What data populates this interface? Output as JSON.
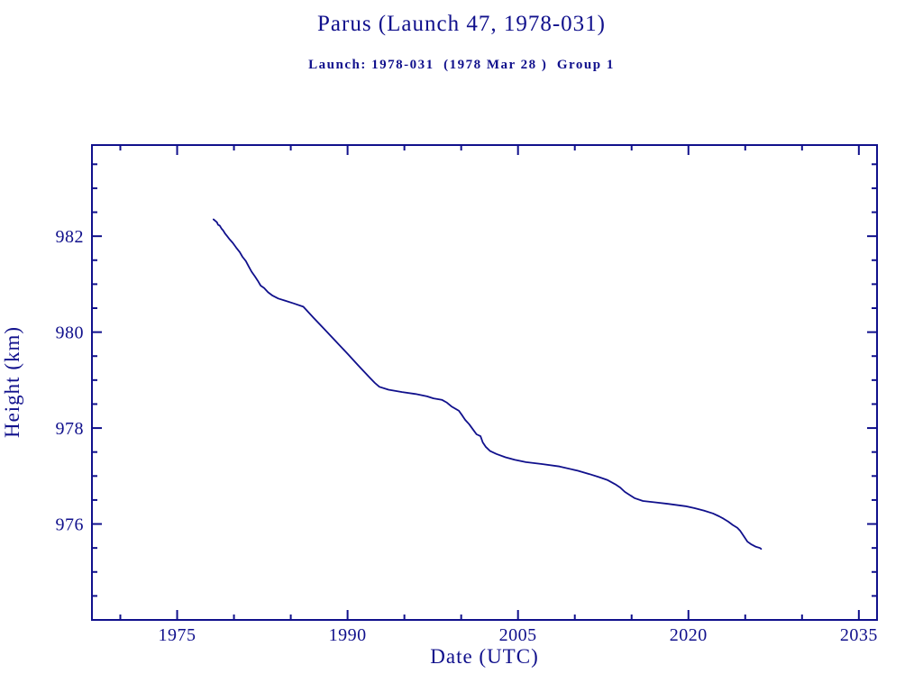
{
  "window": {
    "background_color": "#ffffff",
    "accent_color": "#10108c"
  },
  "chart_data": {
    "type": "line",
    "title": "Parus (Launch 47, 1978-031)",
    "subtitle": "Launch: 1978-031  (1978 Mar 28 )  Group 1",
    "xlabel": "Date (UTC)",
    "ylabel": "Height (km)",
    "xlim": [
      1967.5,
      2036.6
    ],
    "ylim": [
      974.0,
      983.9
    ],
    "x_major_ticks": [
      1975,
      1990,
      2005,
      2020,
      2035
    ],
    "x_tick_labels": [
      "1975",
      "1990",
      "2005",
      "2020",
      "2035"
    ],
    "x_minor_tick_step": 5,
    "y_major_ticks": [
      976,
      978,
      980,
      982
    ],
    "y_tick_labels": [
      "976",
      "978",
      "980",
      "982"
    ],
    "y_minor_tick_step": 0.5,
    "grid": false,
    "legend": "none",
    "line_color": "#10108c",
    "series": [
      {
        "name": "orbit-height-km",
        "points": [
          [
            1978.2,
            982.35
          ],
          [
            1978.35,
            982.32
          ],
          [
            1978.5,
            982.29
          ],
          [
            1978.6,
            982.24
          ],
          [
            1978.75,
            982.22
          ],
          [
            1978.9,
            982.16
          ],
          [
            1979.05,
            982.12
          ],
          [
            1979.2,
            982.06
          ],
          [
            1979.4,
            982.0
          ],
          [
            1979.6,
            981.94
          ],
          [
            1979.9,
            981.86
          ],
          [
            1980.2,
            981.76
          ],
          [
            1980.5,
            981.67
          ],
          [
            1980.75,
            981.57
          ],
          [
            1981.05,
            981.48
          ],
          [
            1981.3,
            981.37
          ],
          [
            1981.55,
            981.26
          ],
          [
            1981.85,
            981.16
          ],
          [
            1982.1,
            981.07
          ],
          [
            1982.35,
            980.97
          ],
          [
            1982.65,
            980.92
          ],
          [
            1983.0,
            980.83
          ],
          [
            1983.4,
            980.76
          ],
          [
            1983.9,
            980.7
          ],
          [
            1984.45,
            980.66
          ],
          [
            1985.25,
            980.6
          ],
          [
            1986.1,
            980.53
          ],
          [
            1987.0,
            980.3
          ],
          [
            1988.0,
            980.05
          ],
          [
            1989.0,
            979.8
          ],
          [
            1990.0,
            979.55
          ],
          [
            1991.0,
            979.29
          ],
          [
            1992.0,
            979.04
          ],
          [
            1992.4,
            978.94
          ],
          [
            1992.8,
            978.86
          ],
          [
            1993.6,
            978.8
          ],
          [
            1994.8,
            978.75
          ],
          [
            1996.0,
            978.71
          ],
          [
            1997.0,
            978.66
          ],
          [
            1997.55,
            978.62
          ],
          [
            1998.3,
            978.59
          ],
          [
            1998.75,
            978.53
          ],
          [
            1999.15,
            978.45
          ],
          [
            1999.8,
            978.36
          ],
          [
            2000.1,
            978.26
          ],
          [
            2000.35,
            978.17
          ],
          [
            2000.7,
            978.08
          ],
          [
            2001.1,
            977.95
          ],
          [
            2001.35,
            977.87
          ],
          [
            2001.7,
            977.83
          ],
          [
            2001.9,
            977.7
          ],
          [
            2002.15,
            977.61
          ],
          [
            2002.55,
            977.52
          ],
          [
            2003.1,
            977.46
          ],
          [
            2003.9,
            977.39
          ],
          [
            2004.7,
            977.34
          ],
          [
            2005.7,
            977.29
          ],
          [
            2007.1,
            977.25
          ],
          [
            2008.65,
            977.2
          ],
          [
            2010.25,
            977.11
          ],
          [
            2011.3,
            977.04
          ],
          [
            2012.1,
            976.98
          ],
          [
            2012.85,
            976.92
          ],
          [
            2013.55,
            976.83
          ],
          [
            2014.0,
            976.76
          ],
          [
            2014.4,
            976.67
          ],
          [
            2014.8,
            976.61
          ],
          [
            2015.25,
            976.54
          ],
          [
            2016.0,
            976.48
          ],
          [
            2017.15,
            976.45
          ],
          [
            2018.2,
            976.42
          ],
          [
            2019.75,
            976.37
          ],
          [
            2020.55,
            976.33
          ],
          [
            2021.35,
            976.28
          ],
          [
            2022.15,
            976.22
          ],
          [
            2022.7,
            976.16
          ],
          [
            2023.1,
            976.11
          ],
          [
            2023.5,
            976.05
          ],
          [
            2023.9,
            975.98
          ],
          [
            2024.3,
            975.92
          ],
          [
            2024.55,
            975.86
          ],
          [
            2024.8,
            975.77
          ],
          [
            2025.0,
            975.7
          ],
          [
            2025.2,
            975.63
          ],
          [
            2025.5,
            975.58
          ],
          [
            2025.9,
            975.53
          ],
          [
            2026.3,
            975.5
          ],
          [
            2026.4,
            975.48
          ]
        ]
      }
    ]
  }
}
